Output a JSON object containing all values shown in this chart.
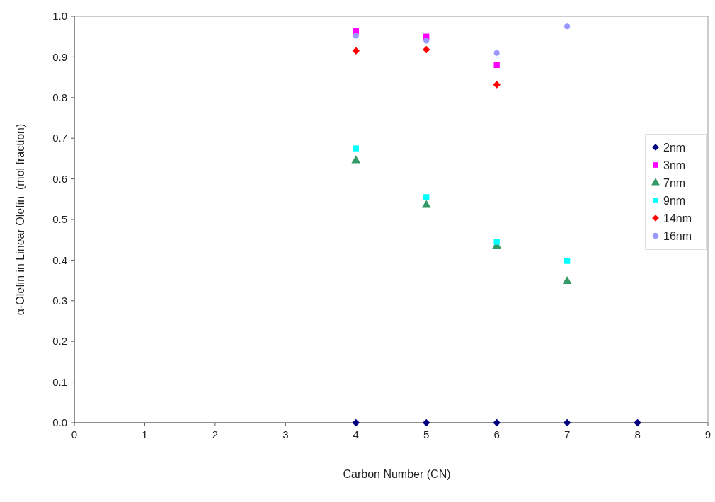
{
  "chart_data": {
    "type": "scatter",
    "xlabel": "Carbon Number (CN)",
    "ylabel": "α-Olefin in Linear Olefin  (mol fraction)",
    "xlim": [
      0,
      9
    ],
    "xticks": [
      0,
      1,
      2,
      3,
      4,
      5,
      6,
      7,
      8,
      9
    ],
    "ylim": [
      0,
      1
    ],
    "yticks": [
      {
        "value": 0,
        "label": "0.0"
      },
      0.1,
      0.2,
      0.3,
      0.4,
      0.5,
      0.6,
      0.7,
      0.8,
      0.9,
      {
        "value": 1,
        "label": "1.0"
      }
    ],
    "grid": false,
    "legend": "right",
    "series": [
      {
        "name": "2nm",
        "color": "#000080",
        "marker": "diamond",
        "x": [
          4,
          5,
          6,
          7,
          8
        ],
        "values": [
          0,
          0,
          0,
          0,
          0
        ]
      },
      {
        "name": "3nm",
        "color": "#ff00ff",
        "marker": "square",
        "x": [
          4,
          5,
          6
        ],
        "values": [
          0.963,
          0.95,
          0.88
        ]
      },
      {
        "name": "7nm",
        "color": "#339966",
        "marker": "triangle",
        "x": [
          4,
          5,
          6,
          7
        ],
        "values": [
          0.645,
          0.535,
          0.435,
          0.348
        ]
      },
      {
        "name": "9nm",
        "color": "#00ffff",
        "marker": "square",
        "x": [
          4,
          5,
          6,
          7
        ],
        "values": [
          0.675,
          0.555,
          0.445,
          0.398
        ]
      },
      {
        "name": "14nm",
        "color": "#ff0000",
        "marker": "diamond",
        "x": [
          4,
          5,
          6
        ],
        "values": [
          0.915,
          0.918,
          0.832
        ]
      },
      {
        "name": "16nm",
        "color": "#9999ff",
        "marker": "circle",
        "x": [
          4,
          5,
          6,
          7
        ],
        "values": [
          0.952,
          0.94,
          0.91,
          0.975
        ]
      }
    ]
  }
}
